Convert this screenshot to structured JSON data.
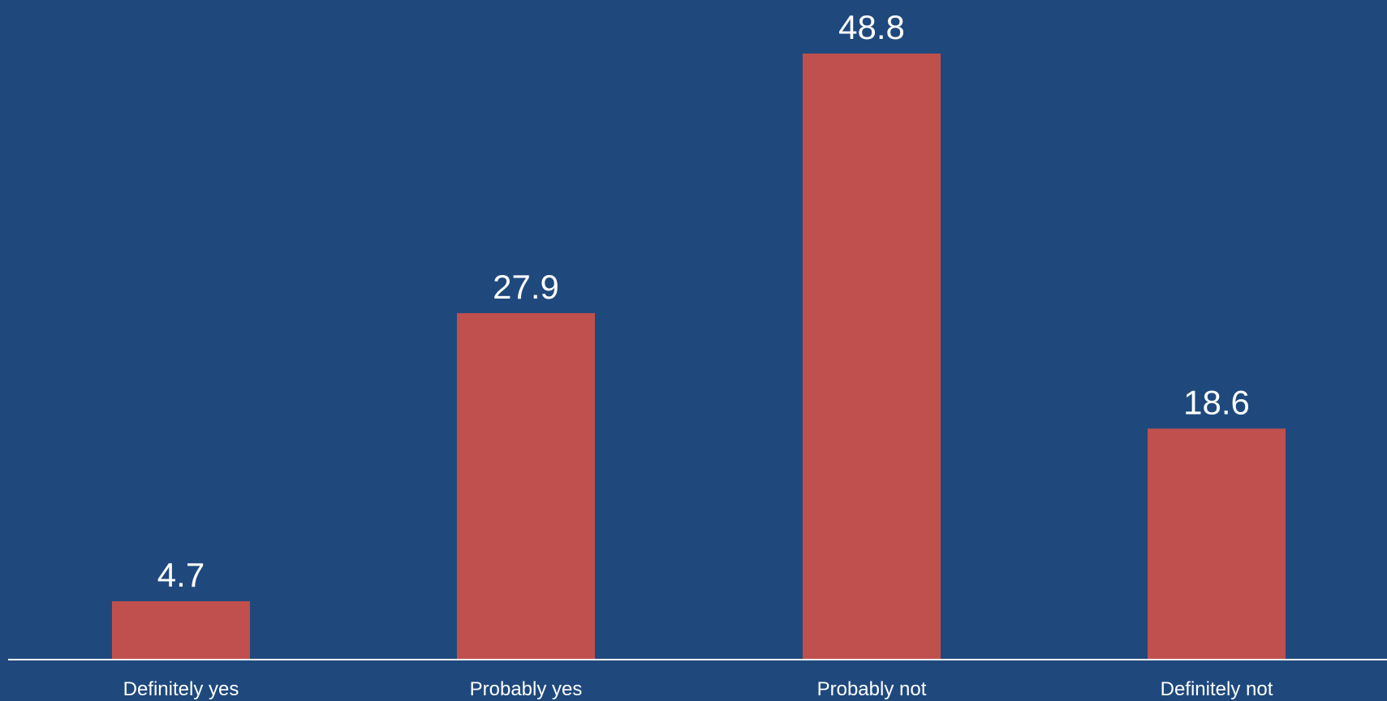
{
  "chart_data": {
    "type": "bar",
    "categories": [
      "Definitely yes",
      "Probably yes",
      "Probably not",
      "Definitely not"
    ],
    "values": [
      4.7,
      27.9,
      48.8,
      18.6
    ],
    "data_labels": [
      "4.7",
      "27.9",
      "48.8",
      "18.6"
    ],
    "ylim": [
      0,
      48.8
    ],
    "grid": false,
    "colors": {
      "background": "#1f497d",
      "bar": "#c0504d",
      "text": "#ffffff",
      "axis": "#ffffff"
    }
  }
}
